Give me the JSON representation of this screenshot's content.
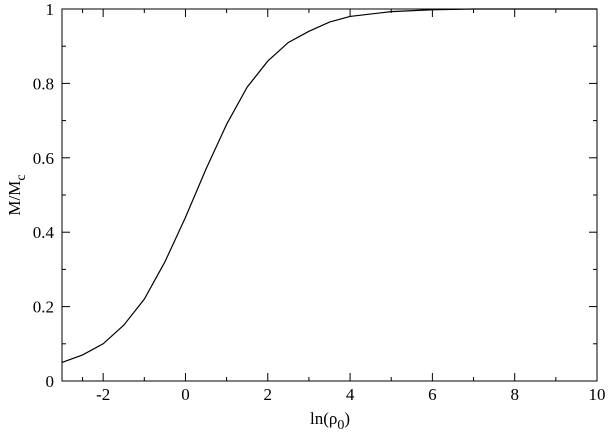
{
  "chart_data": {
    "type": "line",
    "x_label": {
      "text": "ln(ρ",
      "subscript": "0",
      "suffix": ")"
    },
    "y_label": {
      "text": "M/M",
      "subscript": "c"
    },
    "x": [
      -3,
      -2.5,
      -2,
      -1.5,
      -1,
      -0.5,
      0,
      0.5,
      1,
      1.5,
      2,
      2.5,
      3,
      3.5,
      4,
      5,
      6,
      7,
      8,
      9,
      10
    ],
    "series": [
      {
        "color": "#000000",
        "values": [
          0.05,
          0.07,
          0.1,
          0.15,
          0.22,
          0.32,
          0.44,
          0.57,
          0.69,
          0.79,
          0.86,
          0.91,
          0.94,
          0.965,
          0.98,
          0.993,
          0.998,
          1,
          1,
          1,
          1
        ]
      }
    ],
    "xlim": [
      -3,
      10
    ],
    "ylim": [
      0,
      1
    ],
    "xticks": [
      -2,
      0,
      2,
      4,
      6,
      8,
      10
    ],
    "yticks": [
      0,
      0.2,
      0.4,
      0.6,
      0.8,
      1
    ],
    "grid": false
  }
}
